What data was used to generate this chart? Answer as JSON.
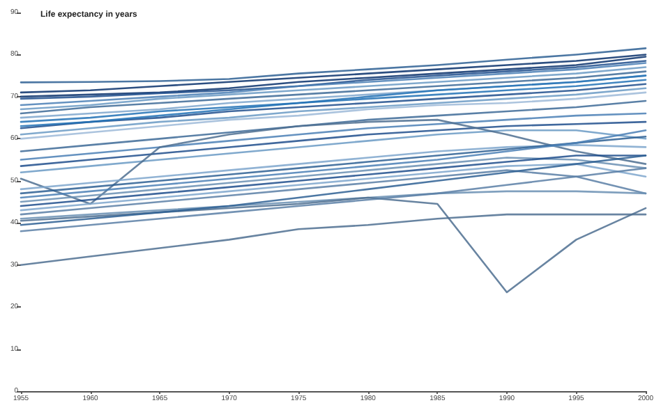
{
  "chart_data": {
    "type": "line",
    "ylabel": "Life expectancy in years",
    "x": [
      1955,
      1960,
      1965,
      1970,
      1975,
      1980,
      1985,
      1990,
      1995,
      2000
    ],
    "xlim": [
      1955,
      2000
    ],
    "xticks": [
      1955,
      1960,
      1965,
      1970,
      1975,
      1980,
      1985,
      1990,
      1995,
      2000
    ],
    "ylim": [
      0,
      90
    ],
    "yticks": [
      0,
      10,
      20,
      30,
      40,
      50,
      60,
      70,
      80,
      90
    ],
    "grid": false,
    "marker": "none",
    "line_style": "solid",
    "series": [
      {
        "color": "#2d5f93",
        "values": [
          73.4,
          73.5,
          73.7,
          74.2,
          75.5,
          76.5,
          77.5,
          78.8,
          80,
          81.5
        ]
      },
      {
        "color": "#08306b",
        "values": [
          70,
          70.5,
          71,
          72,
          73.5,
          74.5,
          75.5,
          76.5,
          77.5,
          79.5
        ]
      },
      {
        "color": "#1f4e8c",
        "values": [
          69.5,
          70,
          70.8,
          71.5,
          72.5,
          74,
          75,
          76,
          77,
          78.5
        ]
      },
      {
        "color": "#4a7fb5",
        "values": [
          68,
          69,
          70,
          71,
          72.5,
          73.5,
          74.5,
          75.5,
          76.5,
          78
        ]
      },
      {
        "color": "#6a9ac4",
        "values": [
          67,
          68,
          69.5,
          70.5,
          71.5,
          72.5,
          73.5,
          74.5,
          75.5,
          77
        ]
      },
      {
        "color": "#3d6a96",
        "values": [
          66,
          67.5,
          68.5,
          69.5,
          70.5,
          71.5,
          72.5,
          73.5,
          74.5,
          76
        ]
      },
      {
        "color": "#7ea6cc",
        "values": [
          65,
          66,
          67,
          68.5,
          69.5,
          70.5,
          71.5,
          72.5,
          73.5,
          75
        ]
      },
      {
        "color": "#2171b5",
        "values": [
          64,
          65,
          66.5,
          67.5,
          68.5,
          69.5,
          70.5,
          71.5,
          72.5,
          74
        ]
      },
      {
        "color": "#1f4e8c",
        "values": [
          62.5,
          64,
          65,
          66.5,
          67.5,
          68.5,
          69.5,
          70.5,
          71.5,
          73
        ]
      },
      {
        "color": "#6a9ac4",
        "values": [
          61,
          62.5,
          64,
          65,
          66.5,
          67.5,
          68.5,
          69.5,
          70.5,
          72
        ]
      },
      {
        "color": "#9dbad8",
        "values": [
          60,
          61.5,
          63,
          64.5,
          65.5,
          67,
          68,
          68.5,
          69.5,
          71
        ]
      },
      {
        "color": "#3d6a96",
        "values": [
          57,
          58.5,
          60,
          61.5,
          63,
          64.5,
          65.5,
          66.5,
          67.5,
          69
        ]
      },
      {
        "color": "#4a7fb5",
        "values": [
          55,
          56.5,
          58,
          59.5,
          61,
          62.5,
          63.5,
          64.5,
          65.5,
          66
        ]
      },
      {
        "color": "#1f4e8c",
        "values": [
          53.5,
          55,
          56.5,
          58,
          59.5,
          61,
          62,
          63,
          63.5,
          64
        ]
      },
      {
        "color": "#6a9ac4",
        "values": [
          52,
          53.5,
          55,
          56.5,
          58,
          59.5,
          61,
          62,
          62,
          60
        ]
      },
      {
        "color": "#4e6f91",
        "values": [
          50.5,
          44.5,
          58,
          61,
          63,
          64,
          64.5,
          61,
          57,
          54
        ]
      },
      {
        "color": "#7ea6cc",
        "values": [
          48,
          49.5,
          51,
          52.5,
          54,
          55.5,
          57,
          58,
          58.5,
          58
        ]
      },
      {
        "color": "#2d5f93",
        "values": [
          47,
          48.5,
          50,
          51.5,
          53,
          54.5,
          56,
          57.5,
          59,
          60.5
        ]
      },
      {
        "color": "#4a7fb5",
        "values": [
          46,
          47.5,
          49,
          50.5,
          52,
          53.5,
          55,
          57,
          59,
          62
        ]
      },
      {
        "color": "#6a8fb3",
        "values": [
          45,
          46.5,
          48,
          49.5,
          51,
          52.5,
          54,
          55.5,
          55,
          53
        ]
      },
      {
        "color": "#1f4e8c",
        "values": [
          44,
          45.5,
          47,
          48.5,
          50,
          51.5,
          53,
          54.5,
          56,
          56
        ]
      },
      {
        "color": "#7ea6cc",
        "values": [
          43,
          44.5,
          46,
          47.5,
          49,
          50.5,
          52,
          53.5,
          54,
          51
        ]
      },
      {
        "color": "#5b7fa6",
        "values": [
          42,
          43.5,
          45,
          46.5,
          48,
          49.5,
          51,
          52.5,
          51,
          47
        ]
      },
      {
        "color": "#6a8fb3",
        "values": [
          41,
          42,
          43,
          44,
          45,
          46,
          47,
          47.5,
          47.5,
          47
        ]
      },
      {
        "color": "#4e6f91",
        "values": [
          40.5,
          41.5,
          42.5,
          43.5,
          44.5,
          46,
          44.5,
          23.5,
          36,
          43.5
        ]
      },
      {
        "color": "#2d5f93",
        "values": [
          39.5,
          41,
          42.5,
          44,
          46,
          48,
          50,
          52,
          54,
          56
        ]
      },
      {
        "color": "#5b7fa6",
        "values": [
          38,
          39.5,
          41,
          42.5,
          44,
          45.5,
          47,
          49,
          51,
          53
        ]
      },
      {
        "color": "#4e6f91",
        "values": [
          30,
          32,
          34,
          36,
          38.5,
          39.5,
          41,
          42,
          42,
          42
        ]
      },
      {
        "color": "#08306b",
        "values": [
          71,
          71.5,
          72.5,
          73.5,
          74.5,
          75.5,
          76.5,
          77.5,
          78.5,
          80
        ]
      },
      {
        "color": "#2171b5",
        "values": [
          63,
          64,
          65.5,
          67,
          68.5,
          70,
          71.5,
          72.5,
          73.5,
          75
        ]
      }
    ]
  }
}
